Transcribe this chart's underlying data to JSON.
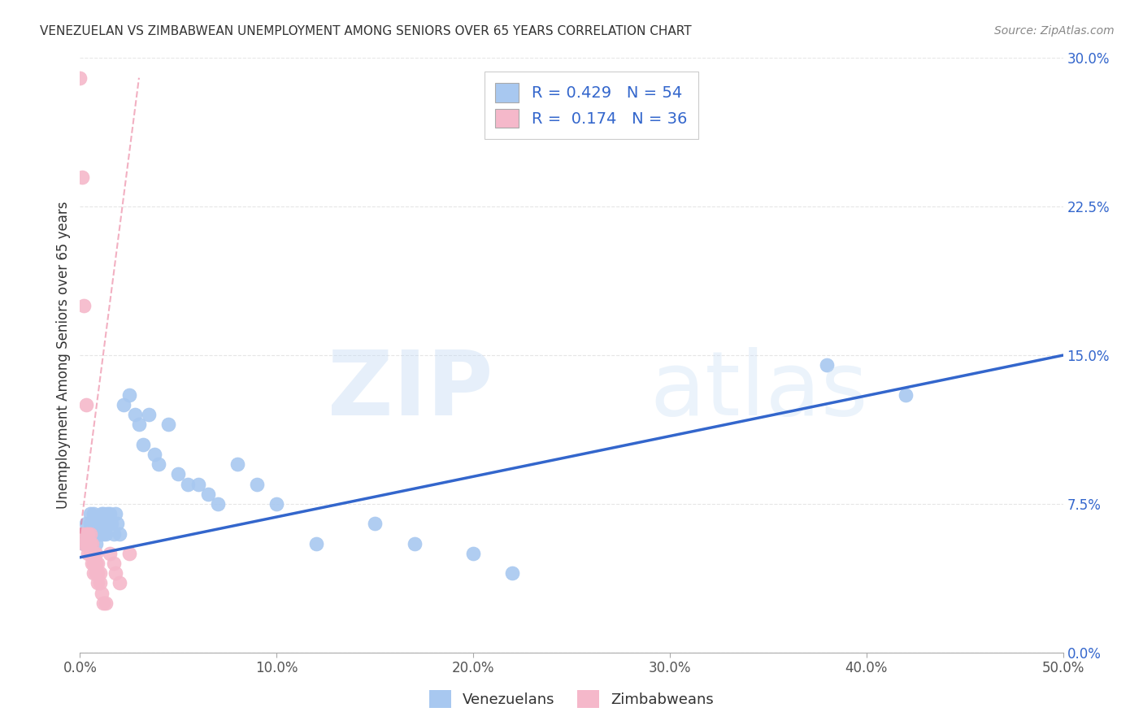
{
  "title": "VENEZUELAN VS ZIMBABWEAN UNEMPLOYMENT AMONG SENIORS OVER 65 YEARS CORRELATION CHART",
  "source": "Source: ZipAtlas.com",
  "ylabel": "Unemployment Among Seniors over 65 years",
  "xlim": [
    0.0,
    0.5
  ],
  "ylim": [
    0.0,
    0.3
  ],
  "xticks": [
    0.0,
    0.1,
    0.2,
    0.3,
    0.4,
    0.5
  ],
  "yticks": [
    0.0,
    0.075,
    0.15,
    0.225,
    0.3
  ],
  "background_color": "#ffffff",
  "grid_color": "#e0e0e0",
  "venezuelan_color": "#a8c8f0",
  "zimbabwean_color": "#f5b8ca",
  "trend_venezuelan_color": "#3366cc",
  "trend_zimbabwean_color": "#e87090",
  "R_venezuelan": 0.429,
  "N_venezuelan": 54,
  "R_zimbabwean": 0.174,
  "N_zimbabwean": 36,
  "ven_x": [
    0.001,
    0.002,
    0.003,
    0.004,
    0.005,
    0.005,
    0.006,
    0.006,
    0.007,
    0.007,
    0.008,
    0.008,
    0.009,
    0.009,
    0.01,
    0.01,
    0.011,
    0.011,
    0.012,
    0.012,
    0.013,
    0.013,
    0.014,
    0.014,
    0.015,
    0.016,
    0.017,
    0.018,
    0.019,
    0.02,
    0.022,
    0.025,
    0.028,
    0.03,
    0.032,
    0.035,
    0.038,
    0.04,
    0.045,
    0.05,
    0.055,
    0.06,
    0.065,
    0.07,
    0.08,
    0.09,
    0.1,
    0.12,
    0.15,
    0.17,
    0.2,
    0.22,
    0.38,
    0.42
  ],
  "ven_y": [
    0.06,
    0.055,
    0.065,
    0.06,
    0.07,
    0.065,
    0.06,
    0.055,
    0.065,
    0.07,
    0.06,
    0.055,
    0.065,
    0.06,
    0.065,
    0.06,
    0.07,
    0.065,
    0.06,
    0.07,
    0.065,
    0.06,
    0.07,
    0.065,
    0.07,
    0.065,
    0.06,
    0.07,
    0.065,
    0.06,
    0.125,
    0.13,
    0.12,
    0.115,
    0.105,
    0.12,
    0.1,
    0.095,
    0.115,
    0.09,
    0.085,
    0.085,
    0.08,
    0.075,
    0.095,
    0.085,
    0.075,
    0.055,
    0.065,
    0.055,
    0.05,
    0.04,
    0.145,
    0.13
  ],
  "zim_x": [
    0.0,
    0.001,
    0.001,
    0.002,
    0.002,
    0.003,
    0.003,
    0.003,
    0.004,
    0.004,
    0.004,
    0.005,
    0.005,
    0.005,
    0.006,
    0.006,
    0.006,
    0.007,
    0.007,
    0.007,
    0.008,
    0.008,
    0.008,
    0.009,
    0.009,
    0.009,
    0.01,
    0.01,
    0.011,
    0.012,
    0.013,
    0.015,
    0.017,
    0.018,
    0.02,
    0.025
  ],
  "zim_y": [
    0.29,
    0.24,
    0.06,
    0.175,
    0.055,
    0.125,
    0.06,
    0.055,
    0.06,
    0.055,
    0.05,
    0.06,
    0.055,
    0.05,
    0.055,
    0.05,
    0.045,
    0.05,
    0.045,
    0.04,
    0.05,
    0.045,
    0.04,
    0.045,
    0.04,
    0.035,
    0.04,
    0.035,
    0.03,
    0.025,
    0.025,
    0.05,
    0.045,
    0.04,
    0.035,
    0.05
  ],
  "trend_ven_x0": 0.0,
  "trend_ven_x1": 0.5,
  "trend_ven_y0": 0.048,
  "trend_ven_y1": 0.15,
  "trend_zim_x0": 0.0,
  "trend_zim_x1": 0.03,
  "trend_zim_y0": 0.06,
  "trend_zim_y1": 0.29
}
